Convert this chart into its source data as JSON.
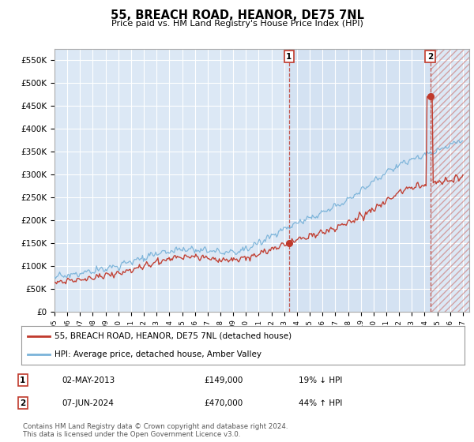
{
  "title": "55, BREACH ROAD, HEANOR, DE75 7NL",
  "subtitle": "Price paid vs. HM Land Registry's House Price Index (HPI)",
  "legend_line1": "55, BREACH ROAD, HEANOR, DE75 7NL (detached house)",
  "legend_line2": "HPI: Average price, detached house, Amber Valley",
  "transaction1_date": "02-MAY-2013",
  "transaction1_price": "£149,000",
  "transaction1_hpi": "19% ↓ HPI",
  "transaction2_date": "07-JUN-2024",
  "transaction2_price": "£470,000",
  "transaction2_hpi": "44% ↑ HPI",
  "footer": "Contains HM Land Registry data © Crown copyright and database right 2024.\nThis data is licensed under the Open Government Licence v3.0.",
  "hpi_color": "#7ab3d9",
  "price_color": "#c0392b",
  "transaction_color": "#c0392b",
  "background_color": "#ffffff",
  "plot_bg_color": "#dce8f5",
  "grid_color": "#ffffff",
  "ylim": [
    0,
    575000
  ],
  "yticks": [
    0,
    50000,
    100000,
    150000,
    200000,
    250000,
    300000,
    350000,
    400000,
    450000,
    500000,
    550000
  ],
  "t1_x": 2013.37,
  "t1_y": 149000,
  "t2_x": 2024.44,
  "t2_y": 470000,
  "xmin": 1995,
  "xmax": 2027.5
}
